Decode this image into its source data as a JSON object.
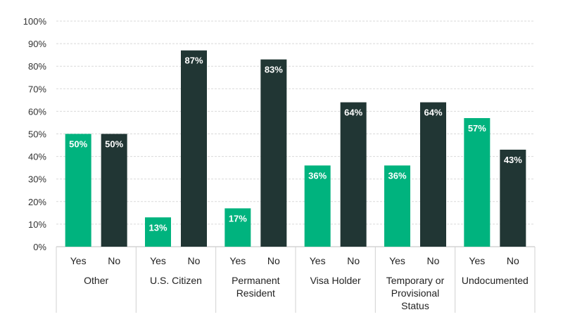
{
  "chart_data": {
    "type": "bar",
    "groups": [
      {
        "label": [
          "Other"
        ],
        "bars": [
          {
            "category": "Yes",
            "value": 50,
            "label": "50%"
          },
          {
            "category": "No",
            "value": 50,
            "label": "50%"
          }
        ]
      },
      {
        "label": [
          "U.S. Citizen"
        ],
        "bars": [
          {
            "category": "Yes",
            "value": 13,
            "label": "13%"
          },
          {
            "category": "No",
            "value": 87,
            "label": "87%"
          }
        ]
      },
      {
        "label": [
          "Permanent",
          "Resident"
        ],
        "bars": [
          {
            "category": "Yes",
            "value": 17,
            "label": "17%"
          },
          {
            "category": "No",
            "value": 83,
            "label": "83%"
          }
        ]
      },
      {
        "label": [
          "Visa Holder"
        ],
        "bars": [
          {
            "category": "Yes",
            "value": 36,
            "label": "36%"
          },
          {
            "category": "No",
            "value": 64,
            "label": "64%"
          }
        ]
      },
      {
        "label": [
          "Temporary or",
          "Provisional",
          "Status"
        ],
        "bars": [
          {
            "category": "Yes",
            "value": 36,
            "label": "36%"
          },
          {
            "category": "No",
            "value": 64,
            "label": "64%"
          }
        ]
      },
      {
        "label": [
          "Undocumented"
        ],
        "bars": [
          {
            "category": "Yes",
            "value": 57,
            "label": "57%"
          },
          {
            "category": "No",
            "value": 43,
            "label": "43%"
          }
        ]
      }
    ],
    "y_ticks": [
      "0%",
      "10%",
      "20%",
      "30%",
      "40%",
      "50%",
      "60%",
      "70%",
      "80%",
      "90%",
      "100%"
    ],
    "ylim": [
      0,
      100
    ],
    "grid": true,
    "legend": "none",
    "colors": {
      "Yes": "#00b37e",
      "No": "#213634"
    }
  }
}
